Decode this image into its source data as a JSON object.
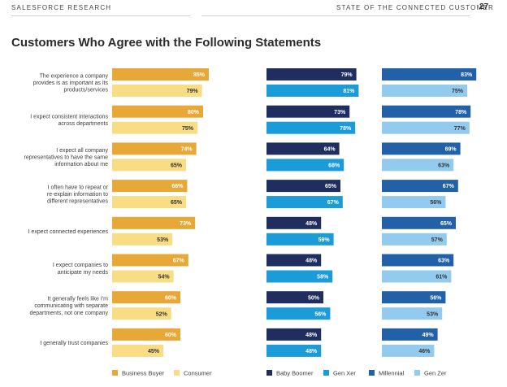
{
  "header": {
    "left": "SALESFORCE RESEARCH",
    "right": "STATE OF THE CONNECTED CUSTOMER",
    "page": "27"
  },
  "title": "Customers Who Agree with the Following Statements",
  "colors": {
    "business_buyer": "#E8A838",
    "consumer": "#F8DD84",
    "baby_boomer": "#1F2E5E",
    "gen_xer": "#1B9BD7",
    "millennial": "#2260A8",
    "gen_zer": "#92CBEE"
  },
  "chart_data": {
    "type": "bar",
    "orientation": "horizontal",
    "grouped_panels": true,
    "categories": [
      [
        "The experience a company",
        "provides is as important as its",
        "products/services"
      ],
      [
        "I expect consistent interactions",
        "across departments"
      ],
      [
        "I expect all company",
        "representatives to have the same",
        "information about me"
      ],
      [
        "I often have to repeat or",
        "re-explain information to",
        "different representatives"
      ],
      [
        "I expect connected experiences"
      ],
      [
        "I expect companies to",
        "anticipate my needs"
      ],
      [
        "It generally feels like I'm",
        "communicating with separate",
        "departments, not one company"
      ],
      [
        "I generally trust companies"
      ]
    ],
    "panels": [
      {
        "series": [
          {
            "name": "Business Buyer",
            "color_key": "business_buyer",
            "label_color": "#ffffff",
            "values": [
              85,
              80,
              74,
              66,
              73,
              67,
              60,
              60
            ]
          },
          {
            "name": "Consumer",
            "color_key": "consumer",
            "label_color": "#333333",
            "values": [
              79,
              75,
              65,
              65,
              53,
              54,
              52,
              45
            ]
          }
        ]
      },
      {
        "series": [
          {
            "name": "Baby Boomer",
            "color_key": "baby_boomer",
            "label_color": "#ffffff",
            "values": [
              79,
              73,
              64,
              65,
              48,
              48,
              50,
              48
            ]
          },
          {
            "name": "Gen Xer",
            "color_key": "gen_xer",
            "label_color": "#ffffff",
            "values": [
              81,
              78,
              68,
              67,
              59,
              58,
              56,
              48
            ]
          }
        ]
      },
      {
        "series": [
          {
            "name": "Millennial",
            "color_key": "millennial",
            "label_color": "#ffffff",
            "values": [
              83,
              78,
              69,
              67,
              65,
              63,
              56,
              49
            ]
          },
          {
            "name": "Gen Zer",
            "color_key": "gen_zer",
            "label_color": "#333333",
            "values": [
              75,
              77,
              63,
              56,
              57,
              61,
              53,
              46
            ]
          }
        ]
      }
    ],
    "value_suffix": "%",
    "xlim": [
      0,
      100
    ],
    "legend_position": "bottom",
    "grid": false
  }
}
